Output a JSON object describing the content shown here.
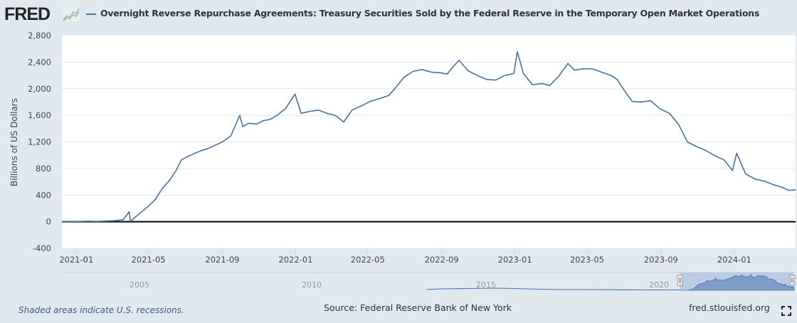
{
  "header": {
    "logo_text": "FRED",
    "logo_icon": "line-chart-icon",
    "title": "Overnight Reverse Repurchase Agreements: Treasury Securities Sold by the Federal Reserve in the Temporary Open Market Operations"
  },
  "colors": {
    "series": "#4572a7",
    "background": "#e1e9f0",
    "plot": "#ffffff",
    "zero_line": "#000000",
    "navigator_fill": "#7f9cc7",
    "navigator_mask": "#b3c5e0"
  },
  "chart_data": {
    "type": "line",
    "title": "Overnight Reverse Repurchase Agreements: Treasury Securities Sold by the Federal Reserve in the Temporary Open Market Operations",
    "xlabel": "",
    "ylabel": "Billions of US Dollars",
    "ylim": [
      -400,
      2800
    ],
    "xlim": [
      "2020-12-08",
      "2024-04-12"
    ],
    "yticks": [
      "2,800",
      "2,400",
      "2,000",
      "1,600",
      "1,200",
      "800",
      "400",
      "0",
      "-400"
    ],
    "ytick_values": [
      2800,
      2400,
      2000,
      1600,
      1200,
      800,
      400,
      0,
      -400
    ],
    "xticks": [
      "2021-01",
      "2021-05",
      "2021-09",
      "2022-01",
      "2022-05",
      "2022-09",
      "2023-01",
      "2023-05",
      "2023-09",
      "2024-01"
    ],
    "grid": true,
    "legend": "top-left",
    "series": [
      {
        "name": "Overnight Reverse Repurchase Agreements: Treasury Securities Sold by the Federal Reserve in the Temporary Open Market Operations",
        "x": [
          "2020-12-08",
          "2020-12-20",
          "2021-01-05",
          "2021-01-20",
          "2021-02-05",
          "2021-02-20",
          "2021-03-05",
          "2021-03-20",
          "2021-03-30",
          "2021-04-01",
          "2021-04-08",
          "2021-04-20",
          "2021-05-01",
          "2021-05-12",
          "2021-05-24",
          "2021-06-05",
          "2021-06-16",
          "2021-06-25",
          "2021-07-05",
          "2021-07-15",
          "2021-07-28",
          "2021-08-08",
          "2021-08-20",
          "2021-09-01",
          "2021-09-15",
          "2021-09-30",
          "2021-10-05",
          "2021-10-15",
          "2021-10-28",
          "2021-11-08",
          "2021-11-20",
          "2021-12-01",
          "2021-12-15",
          "2021-12-31",
          "2022-01-10",
          "2022-01-25",
          "2022-02-08",
          "2022-02-22",
          "2022-03-08",
          "2022-03-22",
          "2022-04-05",
          "2022-04-20",
          "2022-05-05",
          "2022-05-20",
          "2022-06-05",
          "2022-06-15",
          "2022-06-30",
          "2022-07-15",
          "2022-07-30",
          "2022-08-15",
          "2022-08-30",
          "2022-09-10",
          "2022-09-20",
          "2022-09-30",
          "2022-10-15",
          "2022-10-30",
          "2022-11-15",
          "2022-11-30",
          "2022-12-15",
          "2022-12-30",
          "2023-01-05",
          "2023-01-15",
          "2023-01-30",
          "2023-02-15",
          "2023-02-28",
          "2023-03-15",
          "2023-03-30",
          "2023-04-10",
          "2023-04-25",
          "2023-05-10",
          "2023-05-25",
          "2023-06-10",
          "2023-06-20",
          "2023-06-30",
          "2023-07-15",
          "2023-07-30",
          "2023-08-15",
          "2023-08-30",
          "2023-09-15",
          "2023-09-30",
          "2023-10-15",
          "2023-10-30",
          "2023-11-15",
          "2023-11-30",
          "2023-12-15",
          "2023-12-29",
          "2024-01-05",
          "2024-01-20",
          "2024-02-05",
          "2024-02-20",
          "2024-03-05",
          "2024-03-20",
          "2024-04-01",
          "2024-04-12"
        ],
        "values": [
          2,
          5,
          3,
          8,
          5,
          10,
          15,
          30,
          150,
          5,
          60,
          150,
          235,
          330,
          500,
          620,
          770,
          930,
          980,
          1020,
          1070,
          1100,
          1150,
          1200,
          1290,
          1600,
          1430,
          1480,
          1470,
          1520,
          1540,
          1600,
          1700,
          1920,
          1630,
          1660,
          1680,
          1630,
          1600,
          1500,
          1680,
          1740,
          1810,
          1850,
          1900,
          2000,
          2170,
          2260,
          2290,
          2250,
          2240,
          2220,
          2330,
          2430,
          2270,
          2200,
          2140,
          2130,
          2200,
          2230,
          2560,
          2230,
          2060,
          2080,
          2050,
          2190,
          2380,
          2280,
          2300,
          2300,
          2250,
          2200,
          2140,
          2000,
          1810,
          1800,
          1820,
          1700,
          1630,
          1470,
          1200,
          1130,
          1070,
          990,
          930,
          770,
          1030,
          720,
          640,
          610,
          560,
          520,
          470,
          480
        ]
      }
    ]
  },
  "navigator": {
    "labels": [
      "2005",
      "2010",
      "2015",
      "2020"
    ]
  },
  "footer": {
    "note": "Shaded areas indicate U.S. recessions.",
    "source": "Source: Federal Reserve Bank of New York",
    "site": "fred.stlouisfed.org",
    "fullscreen_icon": "fullscreen-icon"
  }
}
